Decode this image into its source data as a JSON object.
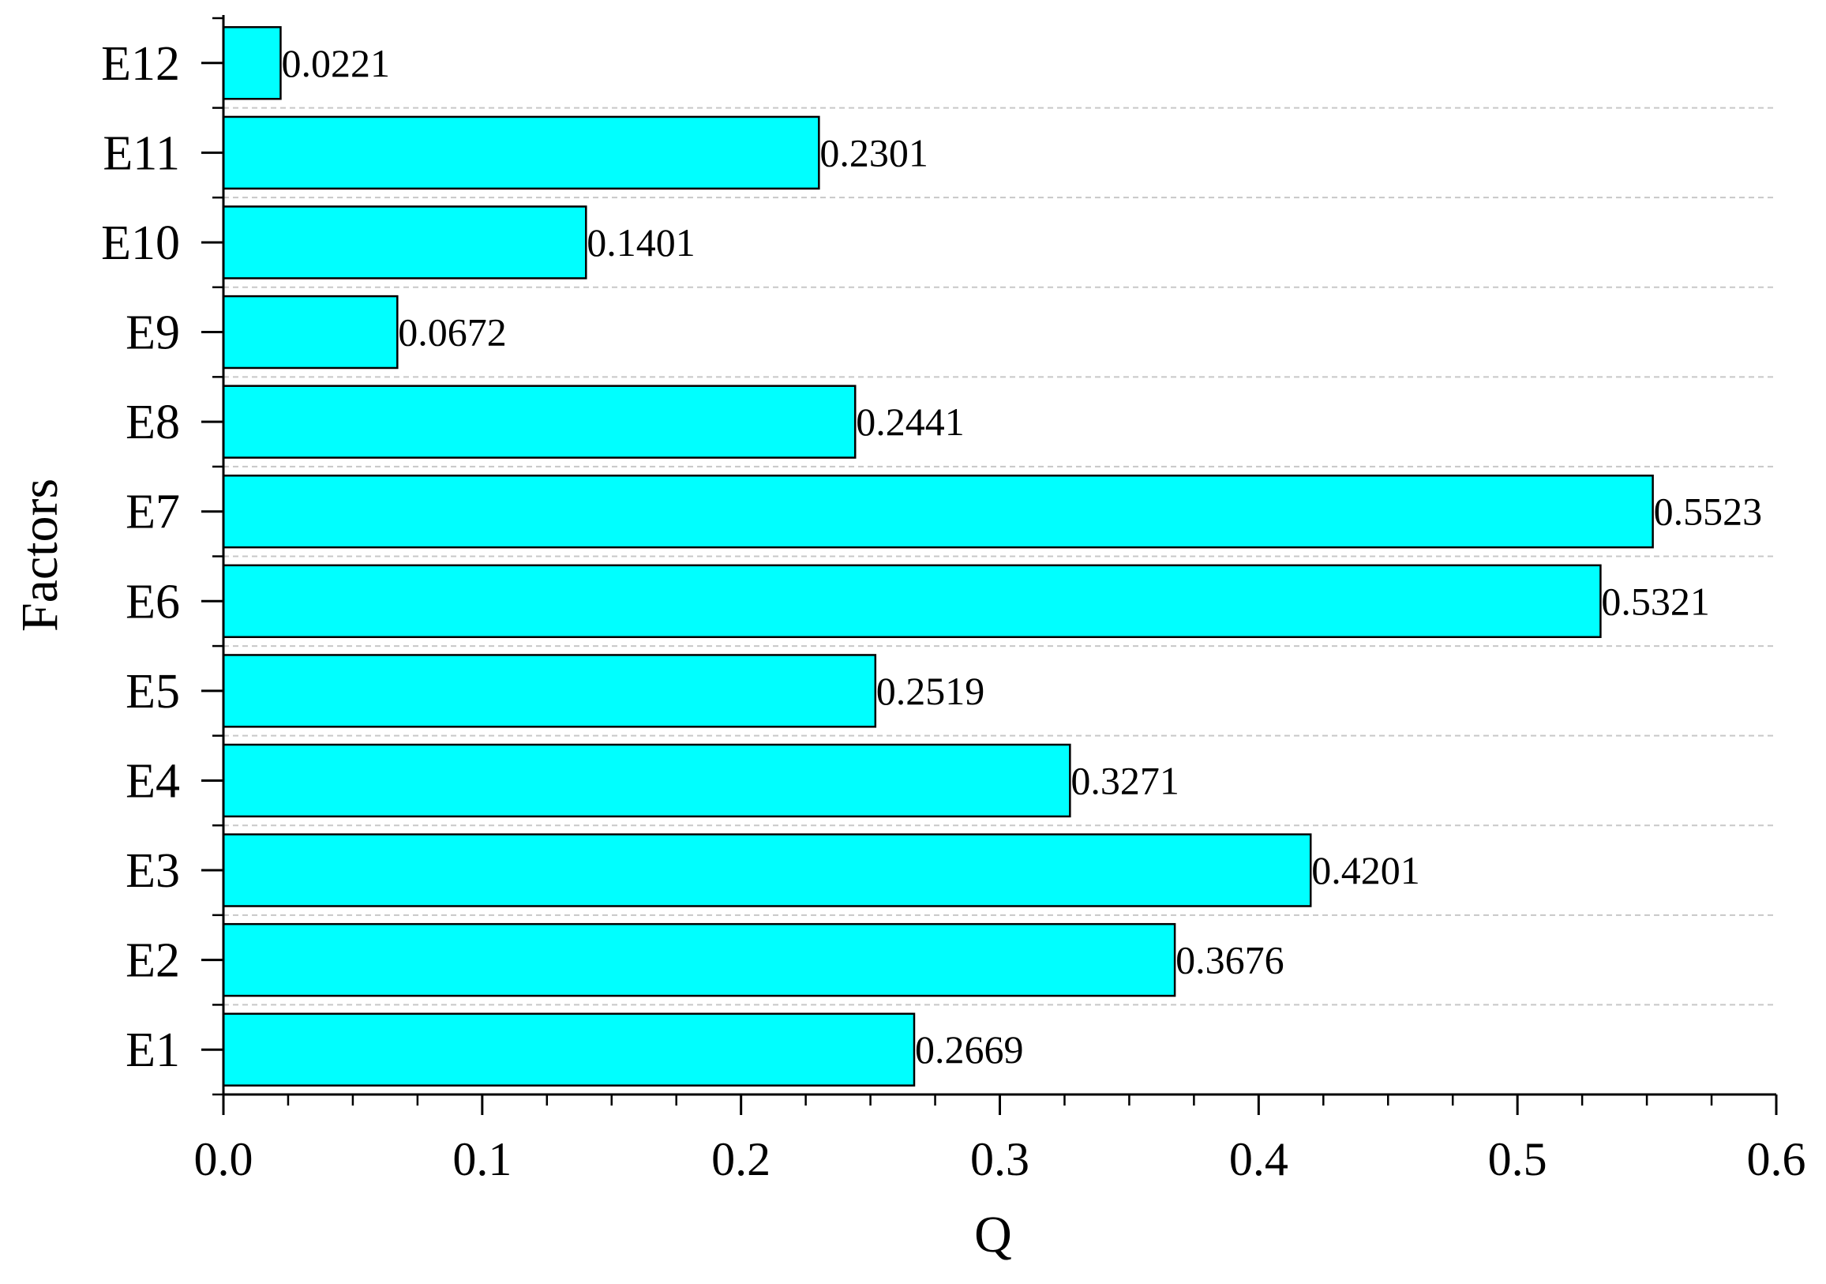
{
  "chart_data": {
    "type": "bar",
    "orientation": "horizontal",
    "categories": [
      "E1",
      "E2",
      "E3",
      "E4",
      "E5",
      "E6",
      "E7",
      "E8",
      "E9",
      "E10",
      "E11",
      "E12"
    ],
    "values": [
      0.2669,
      0.3676,
      0.4201,
      0.3271,
      0.2519,
      0.5321,
      0.5523,
      0.2441,
      0.0672,
      0.1401,
      0.2301,
      0.0221
    ],
    "value_labels": [
      "0.2669",
      "0.3676",
      "0.4201",
      "0.3271",
      "0.2519",
      "0.5321",
      "0.5523",
      "0.2441",
      "0.0672",
      "0.1401",
      "0.2301",
      "0.0221"
    ],
    "xlabel": "Q",
    "ylabel": "Factors",
    "xlim": [
      0,
      0.6
    ],
    "xticks": [
      "0.0",
      "0.1",
      "0.2",
      "0.3",
      "0.4",
      "0.5",
      "0.6"
    ],
    "grid": "dashed horizontal",
    "bar_color": "#00FFFF",
    "edge_color": "#000000"
  }
}
